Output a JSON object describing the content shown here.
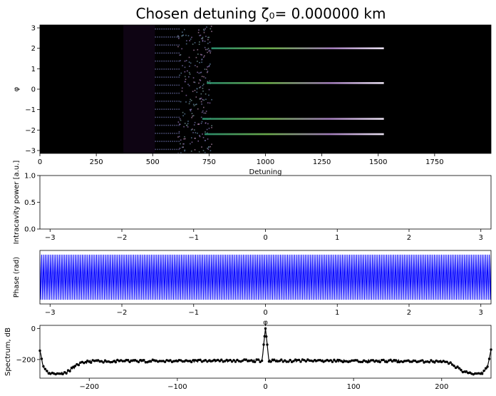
{
  "figure": {
    "title": "Chosen detuning ζ₀= 0.000000 km"
  },
  "chart_data": [
    {
      "type": "heatmap",
      "panel": "detuning-map",
      "xlabel": "Detuning",
      "ylabel": "φ",
      "xlim": [
        0,
        2000
      ],
      "ylim": [
        -3.14159,
        3.14159
      ],
      "xticks": [
        0,
        250,
        500,
        750,
        1000,
        1250,
        1500,
        1750
      ],
      "xtick_labels": [
        "0",
        "250",
        "500",
        "750",
        "1000",
        "1250",
        "1500",
        "1750"
      ],
      "yticks": [
        -3,
        -2,
        -1,
        0,
        1,
        2,
        3
      ],
      "ytick_labels": [
        "−3",
        "−2",
        "−1",
        "0",
        "1",
        "2",
        "3"
      ],
      "background_color": "#000000",
      "chaotic_region": [
        510,
        760
      ],
      "soliton_lines": [
        {
          "phi": 2.0,
          "x_start": 760,
          "x_end": 1525
        },
        {
          "phi": 0.3,
          "x_start": 740,
          "x_end": 1525
        },
        {
          "phi": -1.45,
          "x_start": 720,
          "x_end": 1525
        },
        {
          "phi": -2.2,
          "x_start": 730,
          "x_end": 1525
        }
      ]
    },
    {
      "type": "line",
      "panel": "intracavity-power",
      "xlabel": "",
      "ylabel": "Intracavity power [a.u.]",
      "xlim": [
        -3.14159,
        3.14159
      ],
      "ylim": [
        0,
        1
      ],
      "xticks": [
        -3,
        -2,
        -1,
        0,
        1,
        2,
        3
      ],
      "xtick_labels": [
        "−3",
        "−2",
        "−1",
        "0",
        "1",
        "2",
        "3"
      ],
      "yticks": [
        0,
        0.5,
        1
      ],
      "ytick_labels": [
        "0.0",
        "0.5",
        "1.0"
      ],
      "series": []
    },
    {
      "type": "line",
      "panel": "phase",
      "xlabel": "φ",
      "ylabel": "Phase (rad)",
      "xlim": [
        -3.14159,
        3.14159
      ],
      "ylim": [
        -3.14159,
        3.14159
      ],
      "xticks": [
        -3,
        -2,
        -1,
        0,
        1,
        2,
        3
      ],
      "xtick_labels": [
        "−3",
        "−2",
        "−1",
        "0",
        "1",
        "2",
        "3"
      ],
      "line_color": "#0000ff",
      "oscillation_cycles": 255
    },
    {
      "type": "line",
      "panel": "spectrum",
      "xlabel": "",
      "ylabel": "Spectrum, dB",
      "xlim": [
        -256,
        256
      ],
      "ylim": [
        -320,
        20
      ],
      "xticks": [
        -200,
        -100,
        0,
        100,
        200
      ],
      "xtick_labels": [
        "−200",
        "−100",
        "0",
        "100",
        "200"
      ],
      "yticks": [
        -200,
        0
      ],
      "ytick_labels": [
        "−200",
        "0"
      ],
      "line_color": "#000000",
      "marker": "dot",
      "anchor_points": [
        {
          "x": -256,
          "y": -135
        },
        {
          "x": -252,
          "y": -250
        },
        {
          "x": -246,
          "y": -285
        },
        {
          "x": -235,
          "y": -292
        },
        {
          "x": -225,
          "y": -280
        },
        {
          "x": -212,
          "y": -230
        },
        {
          "x": -200,
          "y": -212
        },
        {
          "x": -150,
          "y": -210
        },
        {
          "x": -50,
          "y": -208
        },
        {
          "x": -4,
          "y": -208
        },
        {
          "x": 0,
          "y": 0
        },
        {
          "x": 4,
          "y": -208
        },
        {
          "x": 50,
          "y": -208
        },
        {
          "x": 150,
          "y": -210
        },
        {
          "x": 200,
          "y": -212
        },
        {
          "x": 212,
          "y": -230
        },
        {
          "x": 225,
          "y": -280
        },
        {
          "x": 235,
          "y": -292
        },
        {
          "x": 246,
          "y": -285
        },
        {
          "x": 252,
          "y": -250
        },
        {
          "x": 256,
          "y": -135
        }
      ]
    }
  ]
}
